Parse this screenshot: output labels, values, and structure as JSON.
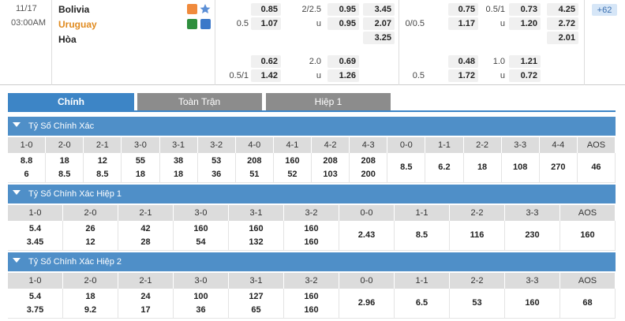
{
  "match": {
    "date": "11/17",
    "time": "03:00AM",
    "teams": [
      "Bolivia",
      "Uruguay",
      "Hòa"
    ],
    "more": "+62",
    "odds": [
      [
        [
          null,
          "0.85",
          "2/2.5",
          "0.95",
          "3.45"
        ],
        [
          null,
          "0.75",
          "0.5/1",
          "0.73",
          "4.25"
        ]
      ],
      [
        [
          "0.5",
          "1.07",
          "u",
          "0.95",
          "2.07"
        ],
        [
          "0/0.5",
          "1.17",
          "u",
          "1.20",
          "2.72"
        ]
      ],
      [
        [
          null,
          null,
          null,
          null,
          "3.25"
        ],
        [
          null,
          null,
          null,
          null,
          "2.01"
        ]
      ],
      [
        [
          null,
          "0.62",
          "2.0",
          "0.69",
          null
        ],
        [
          null,
          "0.48",
          "1.0",
          "1.21",
          null
        ]
      ],
      [
        [
          "0.5/1",
          "1.42",
          "u",
          "1.26",
          null
        ],
        [
          "0.5",
          "1.72",
          "u",
          "0.72",
          null
        ]
      ]
    ]
  },
  "tabs": [
    "Chính",
    "Toàn Trận",
    "Hiệp 1"
  ],
  "sections": [
    {
      "title": "Tỷ Số Chính Xác",
      "columns": [
        "1-0",
        "2-0",
        "2-1",
        "3-0",
        "3-1",
        "3-2",
        "4-0",
        "4-1",
        "4-2",
        "4-3",
        "0-0",
        "1-1",
        "2-2",
        "3-3",
        "4-4",
        "AOS"
      ],
      "cells": [
        [
          "8.8",
          "6"
        ],
        [
          "18",
          "8.5"
        ],
        [
          "12",
          "8.5"
        ],
        [
          "55",
          "18"
        ],
        [
          "38",
          "18"
        ],
        [
          "53",
          "36"
        ],
        [
          "208",
          "51"
        ],
        [
          "160",
          "52"
        ],
        [
          "208",
          "103"
        ],
        [
          "208",
          "200"
        ],
        [
          "8.5"
        ],
        [
          "6.2"
        ],
        [
          "18"
        ],
        [
          "108"
        ],
        [
          "270"
        ],
        [
          "46"
        ]
      ]
    },
    {
      "title": "Tỷ Số Chính Xác Hiệp 1",
      "columns": [
        "1-0",
        "2-0",
        "2-1",
        "3-0",
        "3-1",
        "3-2",
        "0-0",
        "1-1",
        "2-2",
        "3-3",
        "AOS"
      ],
      "cells": [
        [
          "5.4",
          "3.45"
        ],
        [
          "26",
          "12"
        ],
        [
          "42",
          "28"
        ],
        [
          "160",
          "54"
        ],
        [
          "160",
          "132"
        ],
        [
          "160",
          "160"
        ],
        [
          "2.43"
        ],
        [
          "8.5"
        ],
        [
          "116"
        ],
        [
          "230"
        ],
        [
          "160"
        ]
      ]
    },
    {
      "title": "Tỷ Số Chính Xác Hiệp 2",
      "columns": [
        "1-0",
        "2-0",
        "2-1",
        "3-0",
        "3-1",
        "3-2",
        "0-0",
        "1-1",
        "2-2",
        "3-3",
        "AOS"
      ],
      "cells": [
        [
          "5.4",
          "3.75"
        ],
        [
          "18",
          "9.2"
        ],
        [
          "24",
          "17"
        ],
        [
          "100",
          "36"
        ],
        [
          "127",
          "65"
        ],
        [
          "160",
          "160"
        ],
        [
          "2.96"
        ],
        [
          "6.5"
        ],
        [
          "53"
        ],
        [
          "160"
        ],
        [
          "68"
        ]
      ]
    }
  ]
}
